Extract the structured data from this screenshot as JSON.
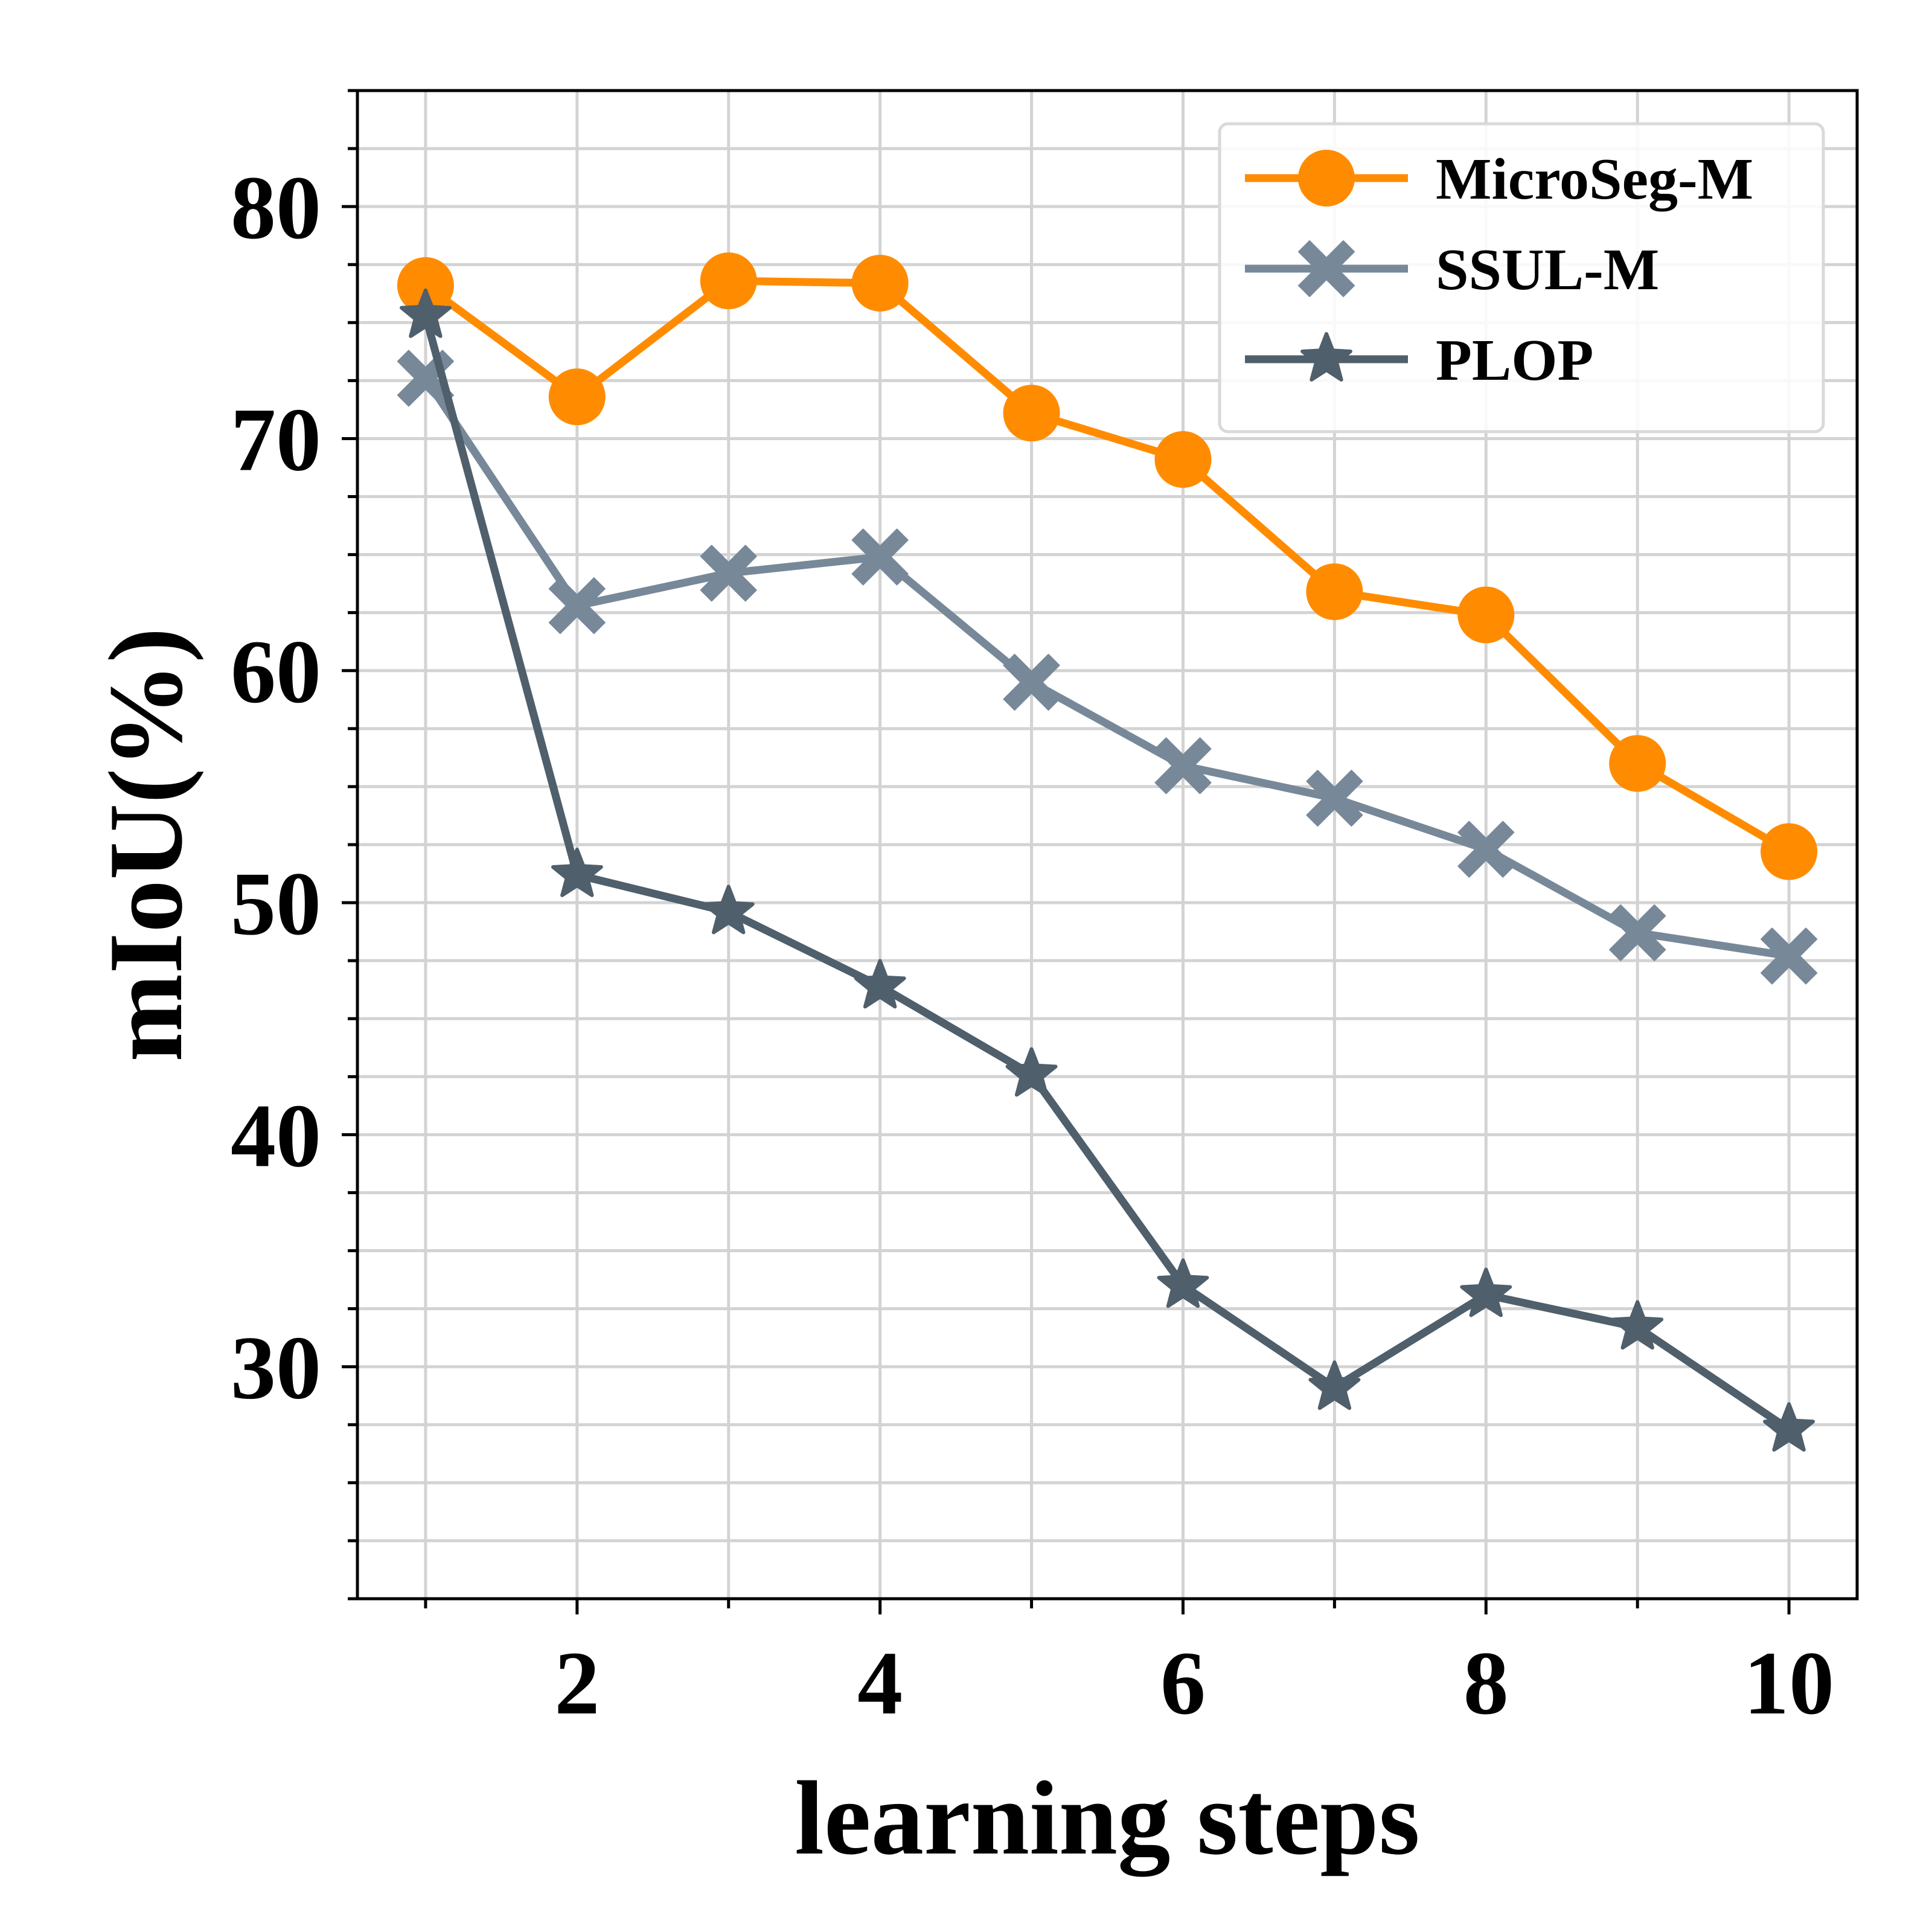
{
  "chart_data": {
    "type": "line",
    "title": "",
    "xlabel": "learning steps",
    "ylabel": "mIoU(%)",
    "x": [
      1,
      2,
      3,
      4,
      5,
      6,
      7,
      8,
      9,
      10
    ],
    "xlim": [
      0.55,
      10.45
    ],
    "ylim": [
      20,
      85
    ],
    "xticks": [
      2,
      4,
      6,
      8,
      10
    ],
    "xtick_labels": [
      "2",
      "4",
      "6",
      "8",
      "10"
    ],
    "yticks": [
      30,
      40,
      50,
      60,
      70,
      80
    ],
    "ytick_labels": [
      "30",
      "40",
      "50",
      "60",
      "70",
      "80"
    ],
    "grid": true,
    "legend_position": "top-right",
    "series": [
      {
        "name": "MicroSeg-M",
        "color": "#FF8C00",
        "marker": "circle",
        "values": [
          76.6,
          71.8,
          76.8,
          76.7,
          71.1,
          69.1,
          63.4,
          62.4,
          56.0,
          52.2
        ]
      },
      {
        "name": "SSUL-M",
        "color": "#778899",
        "marker": "x",
        "values": [
          72.6,
          62.8,
          64.2,
          64.9,
          59.5,
          55.9,
          54.5,
          52.3,
          48.7,
          47.7
        ]
      },
      {
        "name": "PLOP",
        "color": "#4F5F6B",
        "marker": "star",
        "values": [
          75.3,
          51.2,
          49.6,
          46.4,
          42.6,
          33.5,
          29.1,
          33.1,
          31.7,
          27.3
        ]
      }
    ]
  }
}
